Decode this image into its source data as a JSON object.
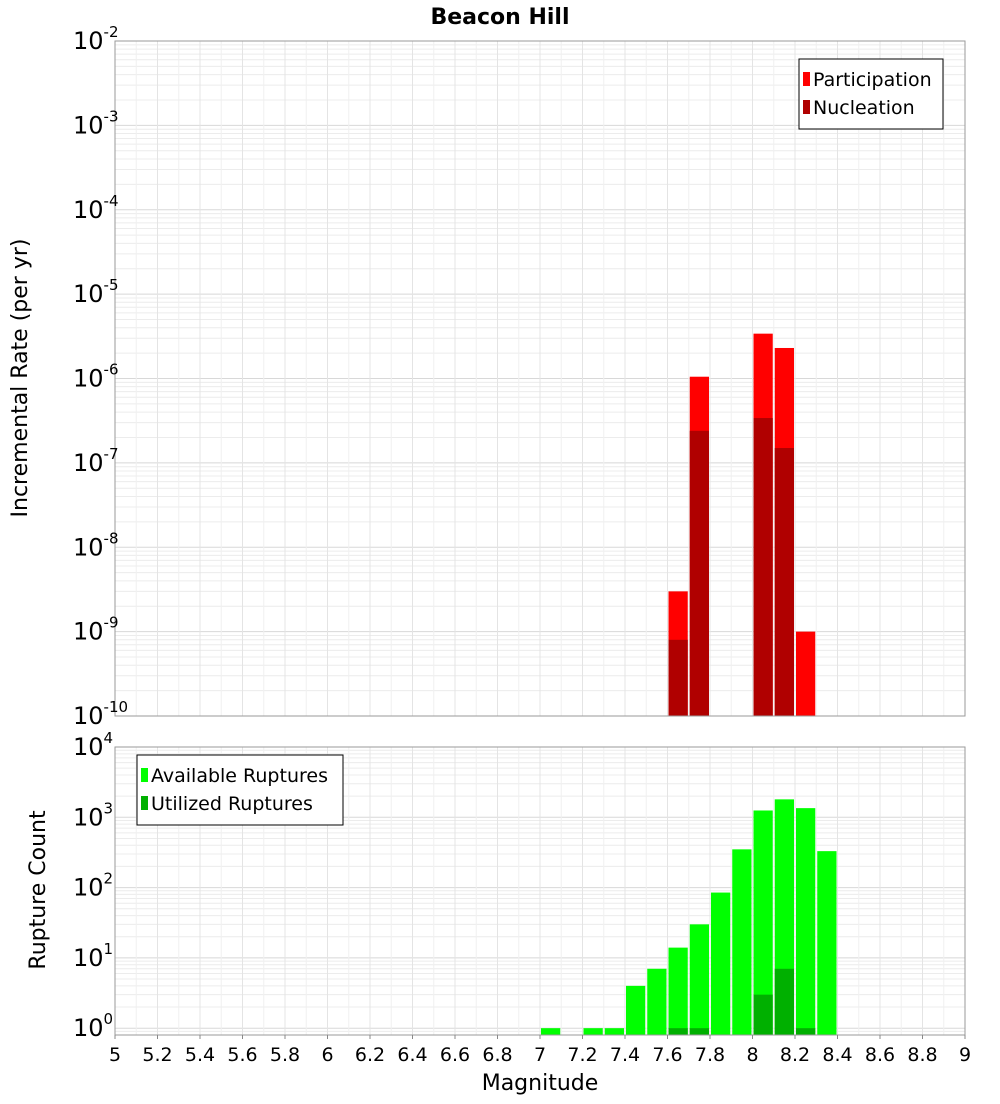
{
  "chart_data": [
    {
      "type": "bar",
      "title": "Beacon Hill",
      "xlabel": "Magnitude",
      "ylabel": "Incremental Rate (per yr)",
      "yscale": "log",
      "ylim": [
        1e-10,
        0.01
      ],
      "xlim": [
        5,
        9
      ],
      "ytick_exponents": [
        "-10",
        "-9",
        "-8",
        "-7",
        "-6",
        "-5",
        "-4",
        "-3",
        "-2"
      ],
      "legend_position": "top-right",
      "series": [
        {
          "name": "Participation",
          "color": "#ff0000",
          "points": [
            {
              "x": 7.65,
              "y": 3e-09
            },
            {
              "x": 7.75,
              "y": 1.05e-06
            },
            {
              "x": 8.05,
              "y": 3.4e-06
            },
            {
              "x": 8.15,
              "y": 2.3e-06
            },
            {
              "x": 8.25,
              "y": 1e-09
            }
          ]
        },
        {
          "name": "Nucleation",
          "color": "#b00000",
          "points": [
            {
              "x": 7.65,
              "y": 8e-10
            },
            {
              "x": 7.75,
              "y": 2.4e-07
            },
            {
              "x": 8.05,
              "y": 3.4e-07
            },
            {
              "x": 8.15,
              "y": 1.5e-07
            }
          ]
        }
      ]
    },
    {
      "type": "bar",
      "xlabel": "Magnitude",
      "ylabel": "Rupture Count",
      "yscale": "log",
      "ylim": [
        0.8,
        10000
      ],
      "xlim": [
        5,
        9
      ],
      "ytick_exponents": [
        "0",
        "1",
        "2",
        "3",
        "4"
      ],
      "xticks": [
        "5",
        "5.2",
        "5.4",
        "5.6",
        "5.8",
        "6",
        "6.2",
        "6.4",
        "6.6",
        "6.8",
        "7",
        "7.2",
        "7.4",
        "7.6",
        "7.8",
        "8",
        "8.2",
        "8.4",
        "8.6",
        "8.8",
        "9"
      ],
      "legend_position": "top-left",
      "series": [
        {
          "name": "Available Ruptures",
          "color": "#00ff00",
          "points": [
            {
              "x": 7.05,
              "y": 1
            },
            {
              "x": 7.25,
              "y": 1
            },
            {
              "x": 7.35,
              "y": 1
            },
            {
              "x": 7.45,
              "y": 4
            },
            {
              "x": 7.55,
              "y": 7
            },
            {
              "x": 7.65,
              "y": 14
            },
            {
              "x": 7.75,
              "y": 30
            },
            {
              "x": 7.85,
              "y": 85
            },
            {
              "x": 7.95,
              "y": 350
            },
            {
              "x": 8.05,
              "y": 1250
            },
            {
              "x": 8.15,
              "y": 1800
            },
            {
              "x": 8.25,
              "y": 1350
            },
            {
              "x": 8.35,
              "y": 330
            }
          ]
        },
        {
          "name": "Utilized Ruptures",
          "color": "#00b000",
          "points": [
            {
              "x": 7.65,
              "y": 1
            },
            {
              "x": 7.75,
              "y": 1
            },
            {
              "x": 8.05,
              "y": 3
            },
            {
              "x": 8.15,
              "y": 7
            },
            {
              "x": 8.25,
              "y": 1
            }
          ]
        }
      ]
    }
  ],
  "axis_base": "10"
}
